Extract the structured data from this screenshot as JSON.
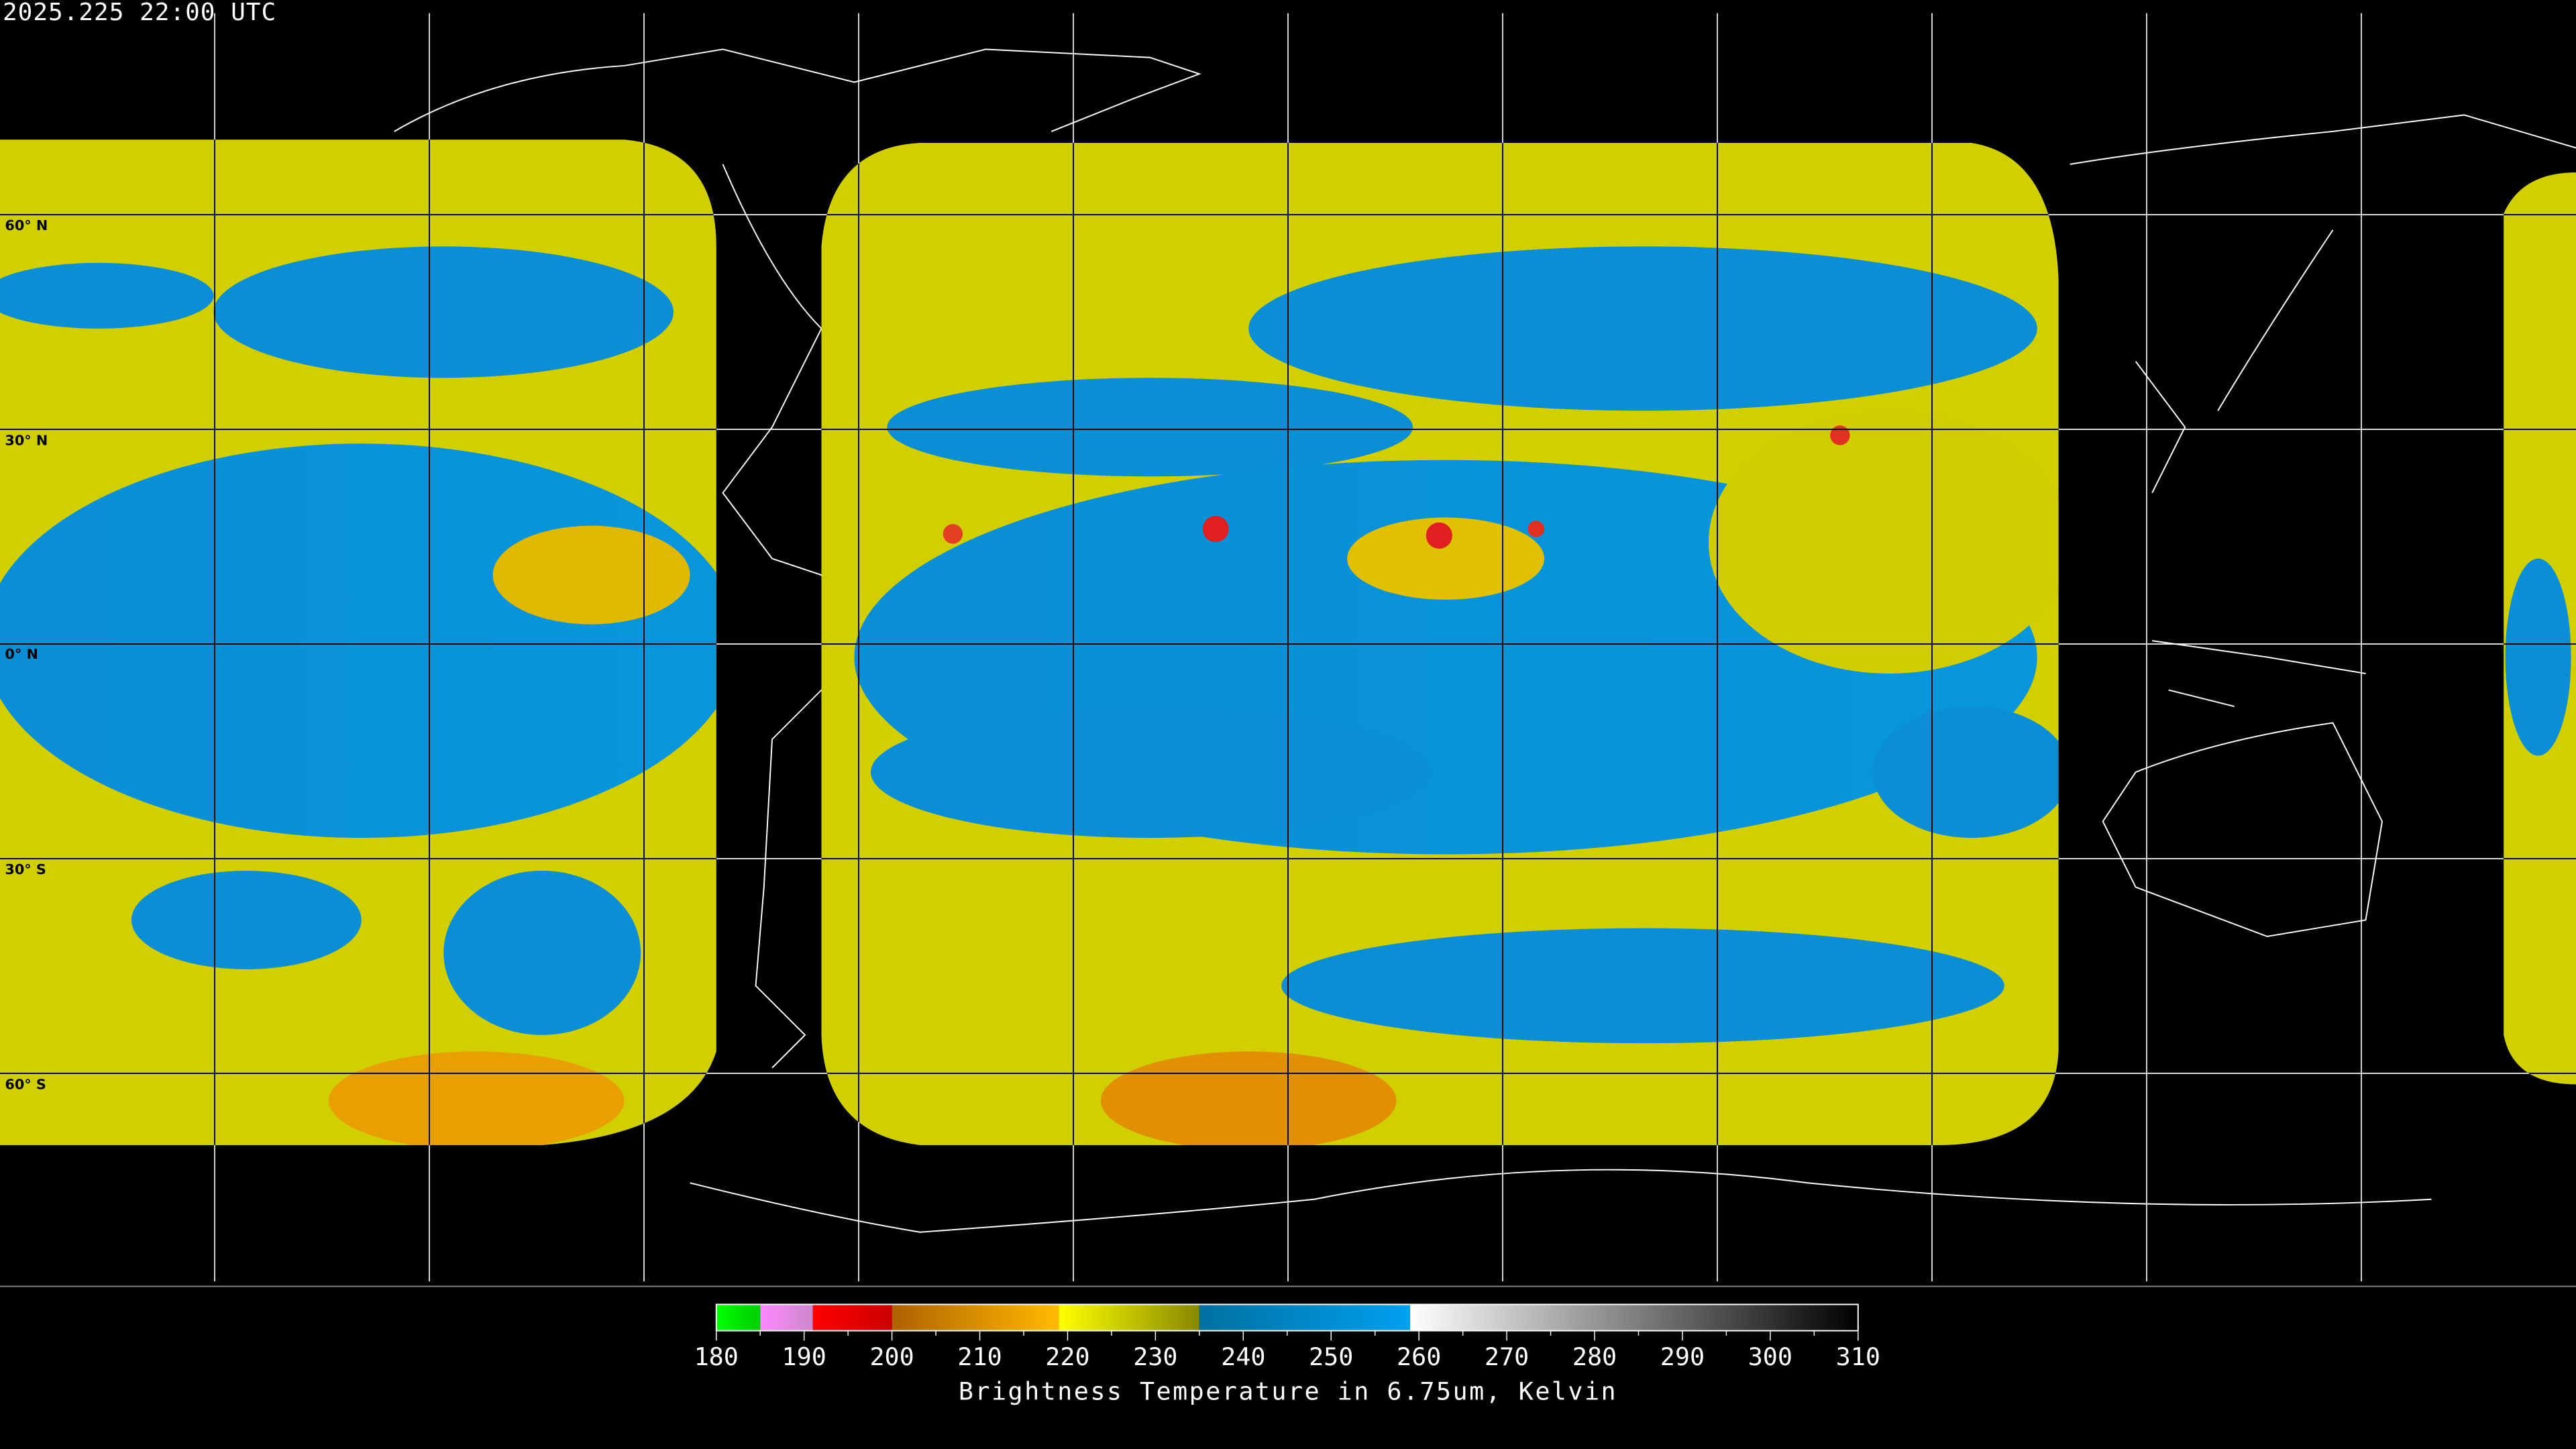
{
  "header": {
    "timestamp": "2025.225 22:00 UTC"
  },
  "map": {
    "latitude_labels": [
      "60° N",
      "30° N",
      "0° N",
      "30° S",
      "60° S"
    ],
    "grid_spacing_degrees": 30,
    "colors": {
      "background": "#000000",
      "coastline": "#ffffff",
      "grid_on_data": "#000000",
      "grid_on_background": "#ffffff"
    }
  },
  "colorbar": {
    "title": "Brightness Temperature in 6.75um, Kelvin",
    "ticks": [
      "180",
      "190",
      "200",
      "210",
      "220",
      "230",
      "240",
      "250",
      "260",
      "270",
      "280",
      "290",
      "300",
      "310"
    ],
    "range": [
      180,
      310
    ],
    "segments": [
      {
        "from": 180,
        "to": 185,
        "colors": [
          "#00ff00",
          "#00cc00"
        ]
      },
      {
        "from": 185,
        "to": 191,
        "colors": [
          "#ff88ff",
          "#cc88cc"
        ]
      },
      {
        "from": 191,
        "to": 200,
        "colors": [
          "#ff0000",
          "#cc0000"
        ]
      },
      {
        "from": 200,
        "to": 219,
        "colors": [
          "#b06000",
          "#ffbb00"
        ]
      },
      {
        "from": 219,
        "to": 235,
        "colors": [
          "#ffff00",
          "#888800"
        ]
      },
      {
        "from": 235,
        "to": 259,
        "colors": [
          "#0070a0",
          "#00a0f0"
        ]
      },
      {
        "from": 259,
        "to": 310,
        "colors": [
          "#ffffff",
          "#000000"
        ]
      }
    ]
  }
}
